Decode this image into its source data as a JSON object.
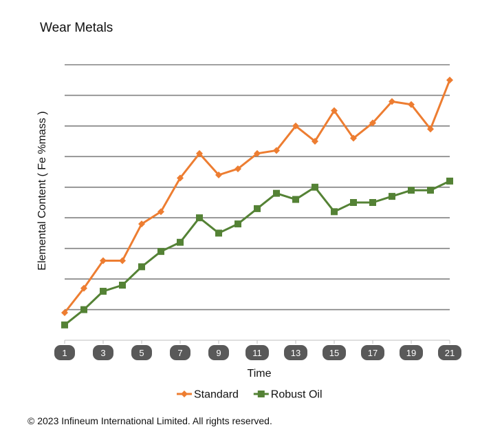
{
  "title": "Wear Metals",
  "copyright": "© 2023 Infineum International Limited. All rights reserved.",
  "chart_data": {
    "type": "line",
    "title": "Wear Metals",
    "xlabel": "Time",
    "ylabel": "Elemental Content ( Fe %mass )",
    "x": [
      1,
      2,
      3,
      4,
      5,
      6,
      7,
      8,
      9,
      10,
      11,
      12,
      13,
      14,
      15,
      16,
      17,
      18,
      19,
      20,
      21
    ],
    "x_tick_labels": [
      "1",
      "3",
      "5",
      "7",
      "9",
      "11",
      "13",
      "15",
      "17",
      "19",
      "21"
    ],
    "ylim": [
      0,
      9
    ],
    "y_gridlines": [
      1,
      2,
      3,
      4,
      5,
      6,
      7,
      8,
      9
    ],
    "y_tick_labels_shown": false,
    "grid": true,
    "legend_position": "bottom",
    "series": [
      {
        "name": "Standard",
        "color": "#ED7D31",
        "marker": "diamond",
        "values": [
          0.9,
          1.7,
          2.6,
          2.6,
          3.8,
          4.2,
          5.3,
          6.1,
          5.4,
          5.6,
          6.1,
          6.2,
          7.0,
          6.5,
          7.5,
          6.6,
          7.1,
          7.8,
          7.7,
          6.9,
          8.5
        ]
      },
      {
        "name": "Robust Oil",
        "color": "#548235",
        "marker": "square",
        "values": [
          0.5,
          1.0,
          1.6,
          1.8,
          2.4,
          2.9,
          3.2,
          4.0,
          3.5,
          3.8,
          4.3,
          4.8,
          4.6,
          5.0,
          4.2,
          4.5,
          4.5,
          4.7,
          4.9,
          4.9,
          5.2
        ]
      }
    ],
    "colors": {
      "grid": "#808080",
      "tick_badge": "#595959"
    }
  }
}
